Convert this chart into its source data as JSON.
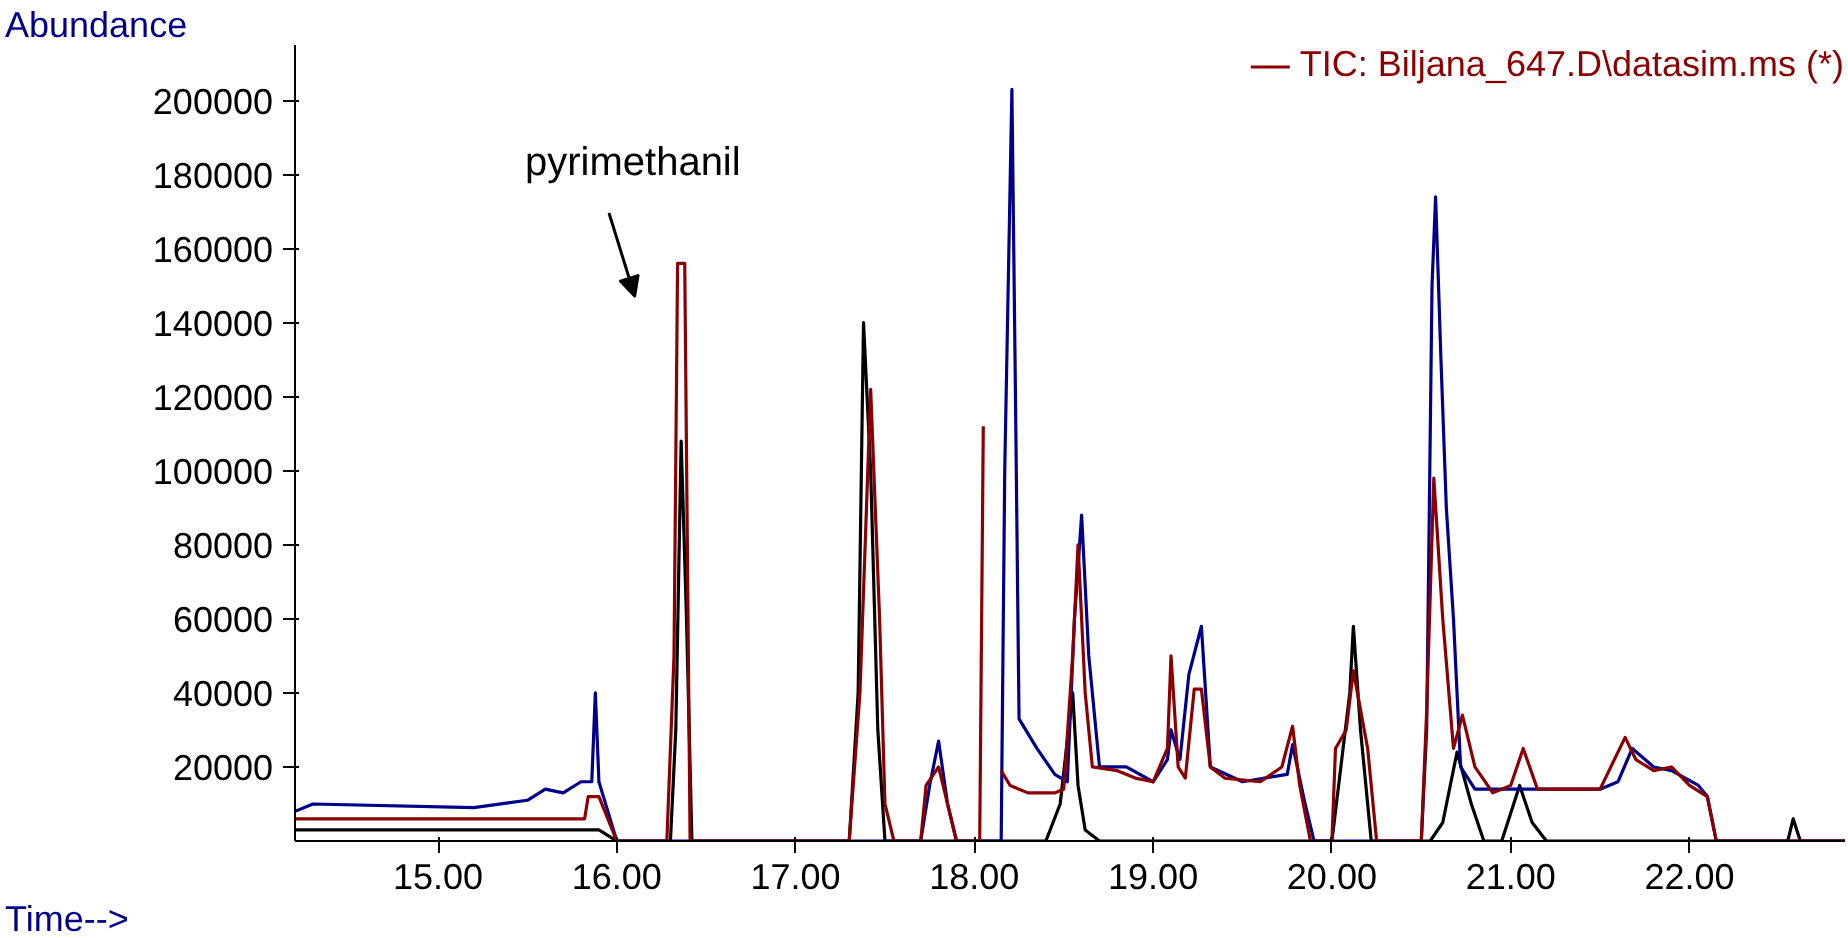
{
  "chart_data": {
    "type": "line",
    "xlabel": "Time-->",
    "ylabel": "Abundance",
    "xlim": [
      14.2,
      22.87
    ],
    "ylim": [
      0,
      215000
    ],
    "xticks": [
      {
        "value": 15,
        "label": "15.00"
      },
      {
        "value": 16,
        "label": "16.00"
      },
      {
        "value": 17,
        "label": "17.00"
      },
      {
        "value": 18,
        "label": "18.00"
      },
      {
        "value": 19,
        "label": "19.00"
      },
      {
        "value": 20,
        "label": "20.00"
      },
      {
        "value": 21,
        "label": "21.00"
      },
      {
        "value": 22,
        "label": "22.00"
      }
    ],
    "yticks": [
      20000,
      40000,
      60000,
      80000,
      100000,
      120000,
      140000,
      160000,
      180000,
      200000
    ],
    "grid": false,
    "legend": "top right",
    "marker": "none",
    "line_style": "solid",
    "annotations": [
      "pyrimethanil"
    ],
    "series": [
      {
        "color": "#000000",
        "x": [
          14.2,
          15.85,
          15.9,
          16.0,
          16.3,
          16.33,
          16.36,
          16.39,
          16.42,
          17.3,
          17.35,
          17.38,
          17.42,
          17.46,
          17.5,
          18.4,
          18.48,
          18.55,
          18.58,
          18.62,
          18.7,
          20.0,
          20.05,
          20.1,
          20.12,
          20.16,
          20.22,
          20.55,
          20.62,
          20.7,
          20.78,
          20.85,
          20.95,
          21.05,
          21.12,
          21.2,
          22.55,
          22.58,
          22.62,
          22.87
        ],
        "values": [
          3000,
          3000,
          3000,
          0,
          0,
          30000,
          108000,
          60000,
          0,
          0,
          40000,
          140000,
          100000,
          30000,
          0,
          0,
          10000,
          40000,
          15000,
          3000,
          0,
          0,
          20000,
          40000,
          58000,
          30000,
          0,
          0,
          5000,
          24000,
          10000,
          0,
          0,
          15000,
          5000,
          0,
          0,
          6000,
          0,
          0
        ]
      },
      {
        "color": "#00008b",
        "x": [
          14.2,
          14.3,
          15.2,
          15.5,
          15.6,
          15.7,
          15.8,
          15.86,
          15.88,
          15.9,
          15.95,
          16.0,
          17.7,
          17.75,
          17.8,
          17.85,
          17.9,
          18.15,
          18.17,
          18.21,
          18.23,
          18.25,
          18.35,
          18.45,
          18.52,
          18.56,
          18.6,
          18.64,
          18.7,
          18.85,
          19.0,
          19.08,
          19.1,
          19.15,
          19.2,
          19.27,
          19.32,
          19.5,
          19.75,
          19.78,
          19.85,
          19.9,
          20.5,
          20.53,
          20.56,
          20.58,
          20.61,
          20.64,
          20.68,
          20.72,
          20.8,
          20.95,
          21.5,
          21.6,
          21.68,
          21.8,
          21.9,
          22.05,
          22.1,
          22.15,
          22.87
        ],
        "values": [
          8000,
          10000,
          9000,
          11000,
          14000,
          13000,
          16000,
          16000,
          40000,
          16000,
          8000,
          0,
          0,
          15000,
          27000,
          10000,
          0,
          0,
          100000,
          203000,
          120000,
          33000,
          25000,
          18000,
          16000,
          60000,
          88000,
          50000,
          20000,
          20000,
          16000,
          22000,
          30000,
          22000,
          45000,
          58000,
          20000,
          16000,
          18000,
          26000,
          10000,
          0,
          0,
          30000,
          150000,
          174000,
          130000,
          90000,
          60000,
          20000,
          14000,
          14000,
          14000,
          16000,
          25000,
          20000,
          19000,
          15000,
          12000,
          0,
          0
        ]
      },
      {
        "name": "TIC: Biljana_647.D\\datasim.ms (*)",
        "color": "#8b0000",
        "x": [
          14.2,
          15.82,
          15.84,
          15.9,
          15.95,
          16.0,
          16.28,
          16.32,
          16.34,
          16.38,
          16.41,
          17.3,
          17.36,
          17.42,
          17.47,
          17.5,
          17.55,
          17.7,
          17.73,
          17.8,
          17.85,
          17.9,
          18.03,
          18.05,
          18.06,
          18.13,
          18.15,
          18.2,
          18.3,
          18.45,
          18.5,
          18.55,
          18.58,
          18.62,
          18.66,
          18.8,
          18.9,
          19.0,
          19.08,
          19.1,
          19.14,
          19.18,
          19.23,
          19.27,
          19.32,
          19.4,
          19.6,
          19.72,
          19.78,
          19.82,
          19.88,
          20.0,
          20.02,
          20.08,
          20.12,
          20.2,
          20.25,
          20.5,
          20.53,
          20.57,
          20.62,
          20.68,
          20.73,
          20.8,
          20.9,
          21.0,
          21.07,
          21.15,
          21.5,
          21.64,
          21.7,
          21.8,
          21.9,
          22.0,
          22.1,
          22.15,
          22.87
        ],
        "values": [
          6000,
          6000,
          12000,
          12000,
          6000,
          0,
          0,
          50000,
          156000,
          156000,
          0,
          0,
          40000,
          122000,
          60000,
          10000,
          0,
          0,
          15000,
          20000,
          10000,
          0,
          0,
          112000,
          null,
          null,
          19000,
          15000,
          13000,
          13000,
          14000,
          50000,
          80000,
          40000,
          20000,
          19000,
          17000,
          16000,
          25000,
          50000,
          20000,
          17000,
          41000,
          41000,
          20000,
          17000,
          16000,
          20000,
          31000,
          15000,
          0,
          0,
          25000,
          30000,
          46000,
          25000,
          0,
          0,
          35000,
          98000,
          60000,
          25000,
          34000,
          20000,
          13000,
          15000,
          25000,
          14000,
          14000,
          28000,
          22000,
          19000,
          20000,
          15000,
          12000,
          0,
          0
        ]
      }
    ]
  }
}
